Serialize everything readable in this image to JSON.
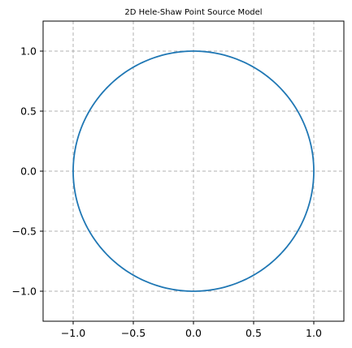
{
  "chart_data": {
    "type": "line",
    "title": "2D Hele-Shaw Point Source Model",
    "xlabel": "",
    "ylabel": "",
    "xlim": [
      -1.25,
      1.25
    ],
    "ylim": [
      -1.25,
      1.25
    ],
    "x_ticks": [
      -1.0,
      -0.5,
      0.0,
      0.5,
      1.0
    ],
    "y_ticks": [
      -1.0,
      -0.5,
      0.0,
      0.5,
      1.0
    ],
    "x_tick_labels": [
      "−1.0",
      "−0.5",
      "0.0",
      "0.5",
      "1.0"
    ],
    "y_tick_labels": [
      "−1.0",
      "−0.5",
      "0.0",
      "0.5",
      "1.0"
    ],
    "grid": true,
    "aspect": "equal",
    "series": [
      {
        "shape": "circle",
        "center": [
          0.0,
          0.0
        ],
        "radius": 1.0,
        "color": "#1f77b4"
      }
    ]
  }
}
